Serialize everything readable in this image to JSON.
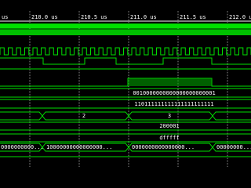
{
  "ruler": {
    "labels": [
      "us",
      "210.0 us",
      "210.5 us",
      "211.0 us",
      "211.5 us",
      "212.0 us"
    ]
  },
  "signals": {
    "vector_a": "0010000000000000000000001",
    "vector_b": "110111111111111111111111",
    "bus_c": [
      "2",
      "3"
    ],
    "value_d": "200001",
    "value_e": "dfffff",
    "bus_f": [
      "0000000000...",
      "10000000000000000...",
      "0000000000000000...",
      "00000000..."
    ]
  }
}
